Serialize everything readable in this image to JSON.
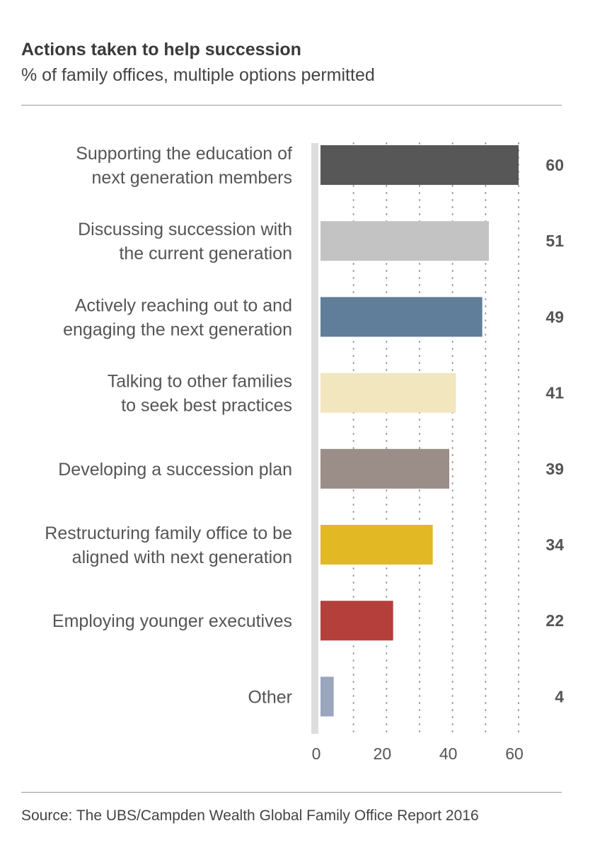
{
  "title": "Actions taken to help succession",
  "subtitle": "% of family offices, multiple options permitted",
  "source": "Source: The UBS/Campden Wealth Global Family Office Report 2016",
  "chart_data": {
    "type": "bar",
    "orientation": "horizontal",
    "categories": [
      [
        "Supporting the education of",
        "next generation members"
      ],
      [
        "Discussing succession with",
        "the current generation"
      ],
      [
        "Actively reaching out to and",
        "engaging the next generation"
      ],
      [
        "Talking to other families",
        "to seek best practices"
      ],
      [
        "Developing a succession plan"
      ],
      [
        "Restructuring family office to be",
        "aligned with next generation"
      ],
      [
        "Employing younger executives"
      ],
      [
        "Other"
      ]
    ],
    "values": [
      60,
      51,
      49,
      41,
      39,
      34,
      22,
      4
    ],
    "value_labels": [
      "60",
      "51",
      "49",
      "41",
      "39",
      "34",
      "22",
      "4"
    ],
    "colors": [
      "#575757",
      "#c3c3c3",
      "#607e99",
      "#f1e6bd",
      "#9b8d88",
      "#e2b824",
      "#b53f3a",
      "#9aa6be"
    ],
    "xlim": [
      0,
      60
    ],
    "xticks": [
      0,
      20,
      40,
      60
    ],
    "tick_labels": [
      "0",
      "20",
      "40",
      "60"
    ],
    "grid": "dotted vertical every 10",
    "legend": "none"
  }
}
